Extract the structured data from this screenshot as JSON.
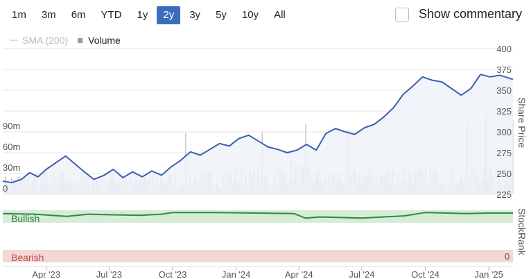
{
  "range_buttons": [
    {
      "label": "1m",
      "active": false
    },
    {
      "label": "3m",
      "active": false
    },
    {
      "label": "6m",
      "active": false
    },
    {
      "label": "YTD",
      "active": false
    },
    {
      "label": "1y",
      "active": false
    },
    {
      "label": "2y",
      "active": true
    },
    {
      "label": "3y",
      "active": false
    },
    {
      "label": "5y",
      "active": false
    },
    {
      "label": "10y",
      "active": false
    },
    {
      "label": "All",
      "active": false
    }
  ],
  "commentary": {
    "label": "Show commentary",
    "checked": false
  },
  "legend": {
    "sma_label": "SMA (200)",
    "volume_label": "Volume"
  },
  "colors": {
    "accent": "#3b6dbf",
    "price_line": "#3a5fb0",
    "price_fill": "#eef1f8",
    "volume": "#cccccc",
    "bullish_band": "#d6ecd8",
    "stockrank_line": "#2e8b3e",
    "bearish_band": "#f4d6d6",
    "bullish_text": "#2e7d32",
    "bearish_text": "#c0504d"
  },
  "chart_data": {
    "type": "line",
    "price_axis_title": "Share Price",
    "rank_axis_title": "StockRank",
    "price_ticks": [
      225,
      250,
      275,
      300,
      325,
      350,
      375,
      400
    ],
    "price_tick_labels": [
      "225",
      "250",
      "275",
      "300",
      "325",
      "350",
      "375",
      "400"
    ],
    "ylim": [
      225,
      400
    ],
    "volume_ticks": [
      0,
      30,
      60,
      90
    ],
    "volume_tick_labels": [
      "0",
      "30m",
      "60m",
      "90m"
    ],
    "volume_ylim": [
      0,
      180
    ],
    "rank_labels": {
      "bullish": "Bullish",
      "bearish": "Bearish",
      "rank_zero": "0"
    },
    "x_labels": [
      "Apr '23",
      "Jul '23",
      "Oct '23",
      "Jan '24",
      "Apr '24",
      "Jul '24",
      "Oct '24",
      "Jan '25"
    ],
    "x_label_dates": [
      "2023-04-01",
      "2023-07-01",
      "2023-10-01",
      "2024-01-01",
      "2024-04-01",
      "2024-07-01",
      "2024-10-01",
      "2025-01-01"
    ],
    "xlim": [
      "2023-01-28",
      "2025-02-05"
    ],
    "price_series": {
      "x": [
        "2023-01-28",
        "2023-02-10",
        "2023-02-24",
        "2023-03-08",
        "2023-03-20",
        "2023-04-01",
        "2023-04-15",
        "2023-04-29",
        "2023-05-12",
        "2023-05-26",
        "2023-06-09",
        "2023-06-24",
        "2023-07-07",
        "2023-07-21",
        "2023-08-04",
        "2023-08-18",
        "2023-09-01",
        "2023-09-15",
        "2023-09-29",
        "2023-10-13",
        "2023-10-27",
        "2023-11-10",
        "2023-11-24",
        "2023-12-08",
        "2023-12-22",
        "2024-01-05",
        "2024-01-19",
        "2024-02-02",
        "2024-02-16",
        "2024-03-01",
        "2024-03-15",
        "2024-03-29",
        "2024-04-12",
        "2024-04-26",
        "2024-05-10",
        "2024-05-24",
        "2024-06-07",
        "2024-06-21",
        "2024-07-05",
        "2024-07-19",
        "2024-08-02",
        "2024-08-16",
        "2024-08-30",
        "2024-09-13",
        "2024-09-27",
        "2024-10-11",
        "2024-10-25",
        "2024-11-08",
        "2024-11-22",
        "2024-12-06",
        "2024-12-20",
        "2025-01-03",
        "2025-01-17",
        "2025-02-05"
      ],
      "y": [
        241,
        239,
        243,
        251,
        246,
        255,
        263,
        271,
        262,
        252,
        243,
        248,
        255,
        245,
        252,
        246,
        253,
        248,
        258,
        266,
        276,
        272,
        279,
        286,
        283,
        292,
        296,
        289,
        282,
        279,
        275,
        278,
        285,
        278,
        298,
        304,
        300,
        297,
        305,
        309,
        318,
        329,
        345,
        355,
        366,
        362,
        360,
        352,
        344,
        352,
        369,
        366,
        368,
        363
      ]
    },
    "volume_series": {
      "x": [
        "2023-01-28",
        "2023-02-20",
        "2023-03-20",
        "2023-04-20",
        "2023-05-20",
        "2023-06-20",
        "2023-07-20",
        "2023-08-20",
        "2023-09-20",
        "2023-10-20",
        "2023-11-20",
        "2023-12-20",
        "2024-01-20",
        "2024-02-20",
        "2024-03-20",
        "2024-04-20",
        "2024-05-20",
        "2024-06-20",
        "2024-07-20",
        "2024-08-20",
        "2024-09-20",
        "2024-10-20",
        "2024-11-20",
        "2024-12-20",
        "2025-01-20"
      ],
      "y": [
        22,
        25,
        30,
        28,
        26,
        24,
        27,
        25,
        26,
        29,
        27,
        30,
        32,
        28,
        40,
        30,
        29,
        31,
        30,
        34,
        33,
        36,
        31,
        38,
        35
      ]
    },
    "stockrank_series": {
      "x": [
        "2023-01-28",
        "2023-03-15",
        "2023-05-01",
        "2023-06-01",
        "2023-07-01",
        "2023-08-15",
        "2023-09-15",
        "2023-10-01",
        "2023-12-01",
        "2024-02-01",
        "2024-03-25",
        "2024-04-10",
        "2024-05-01",
        "2024-06-01",
        "2024-07-01",
        "2024-08-01",
        "2024-09-01",
        "2024-10-01",
        "2024-11-01",
        "2024-12-01",
        "2025-01-01",
        "2025-02-05"
      ],
      "y": [
        94,
        93,
        89,
        93,
        92,
        91,
        93,
        96,
        96,
        95,
        94,
        86,
        88,
        87,
        86,
        88,
        90,
        96,
        95,
        94,
        95,
        95
      ]
    }
  }
}
